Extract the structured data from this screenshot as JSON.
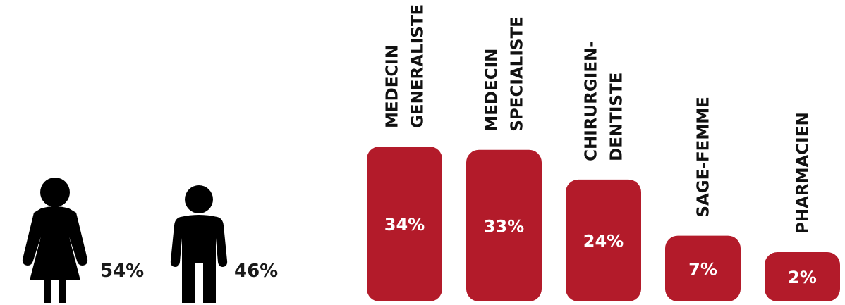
{
  "gender": {
    "female": {
      "icon": "woman-icon",
      "value": "54%"
    },
    "male": {
      "icon": "man-icon",
      "value": "46%"
    }
  },
  "colors": {
    "bar": "#b31b2a",
    "icon": "#000000"
  },
  "chart_data": {
    "type": "bar",
    "categories": [
      [
        "MEDECIN",
        "GENERALISTE"
      ],
      [
        "MEDECIN",
        "SPECIALISTE"
      ],
      [
        "CHIRURGIEN-",
        "DENTISTE"
      ],
      [
        "SAGE-FEMME"
      ],
      [
        "PHARMACIEN"
      ]
    ],
    "values": [
      34,
      33,
      24,
      7,
      2
    ],
    "value_labels": [
      "34%",
      "33%",
      "24%",
      "7%",
      "2%"
    ],
    "grid": false
  }
}
